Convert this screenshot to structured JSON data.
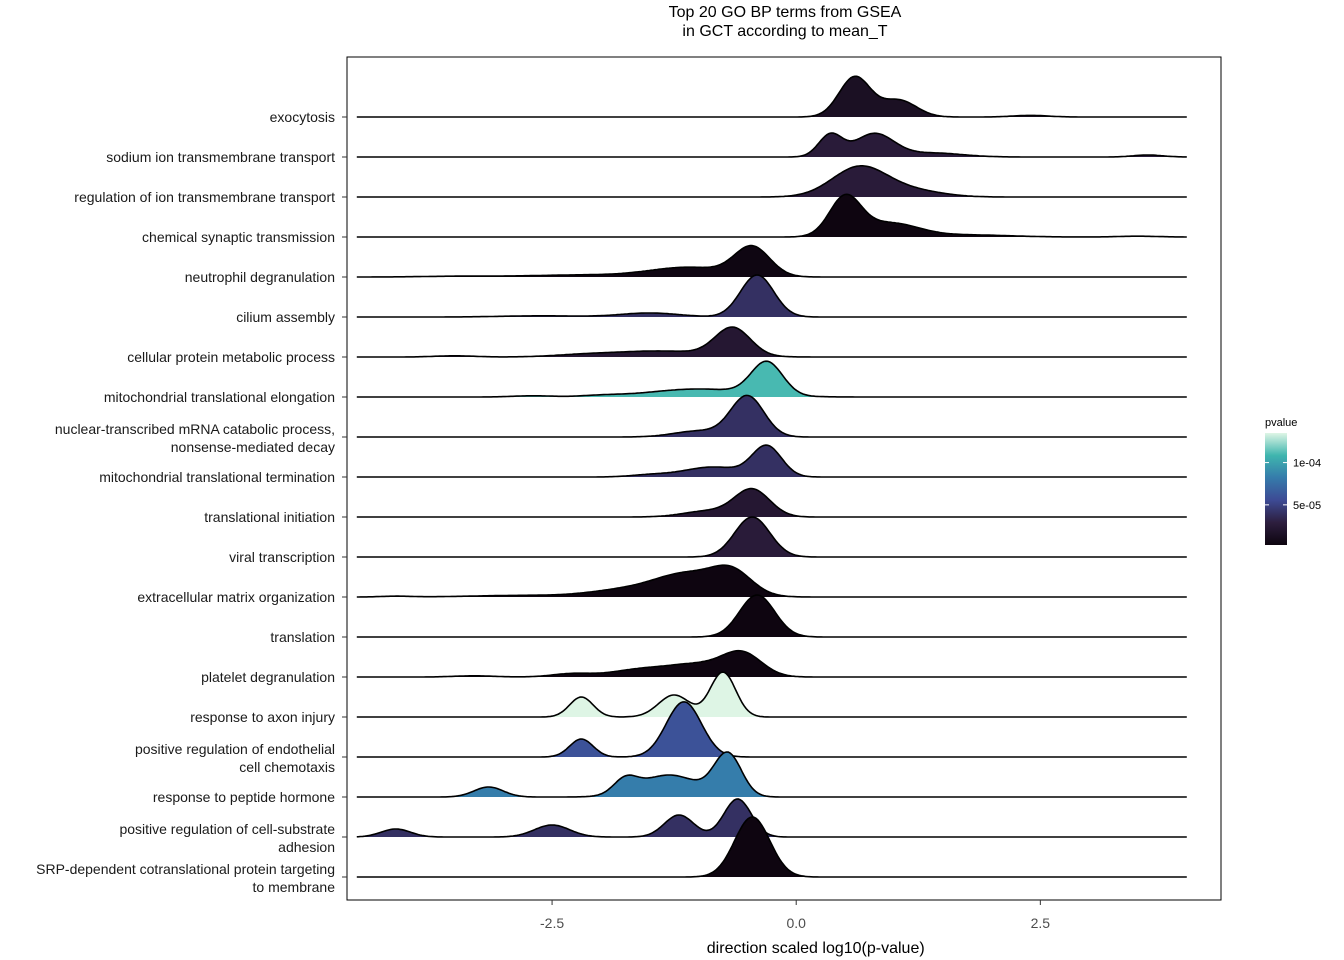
{
  "chart_data": {
    "type": "ridgeline",
    "title": [
      "Top 20 GO BP terms from GSEA",
      "in GCT according to mean_T"
    ],
    "xlabel": "direction scaled log10(p-value)",
    "x_ticks": [
      -2.5,
      0.0,
      2.5
    ],
    "x_tick_labels": [
      "-2.5",
      "0.0",
      "2.5"
    ],
    "xlim": [
      -4.6,
      4.35
    ],
    "x_range": [
      -4.5,
      4.0
    ],
    "grid": false,
    "legend": {
      "title": "pvalue",
      "ticks": [
        "1e-04",
        "5e-05"
      ],
      "tick_values": [
        0.0001,
        5e-05
      ],
      "range": [
        2.5e-06,
        0.000135
      ],
      "placement": "right",
      "colors": [
        "#0d050f",
        "#2d1e3e",
        "#3d4a94",
        "#357bab",
        "#3fb5ae",
        "#def5e5"
      ]
    },
    "series": [
      {
        "label": "exocytosis",
        "pvalue": 1.4e-05,
        "peaks": [
          [
            0.6,
            0.16,
            1.0
          ],
          [
            1.05,
            0.18,
            0.42
          ],
          [
            2.4,
            0.18,
            0.04
          ]
        ]
      },
      {
        "label": "sodium ion transmembrane transport",
        "pvalue": 2.6e-05,
        "peaks": [
          [
            0.35,
            0.12,
            0.55
          ],
          [
            0.8,
            0.2,
            0.58
          ],
          [
            1.4,
            0.3,
            0.1
          ],
          [
            3.6,
            0.15,
            0.05
          ]
        ]
      },
      {
        "label": "regulation of ion transmembrane transport",
        "pvalue": 2.6e-05,
        "peaks": [
          [
            0.65,
            0.28,
            0.75
          ],
          [
            1.2,
            0.3,
            0.15
          ]
        ]
      },
      {
        "label": "chemical synaptic transmission",
        "pvalue": 3e-06,
        "peaks": [
          [
            0.5,
            0.16,
            0.95
          ],
          [
            0.95,
            0.3,
            0.35
          ],
          [
            1.8,
            0.4,
            0.05
          ],
          [
            3.5,
            0.2,
            0.02
          ]
        ]
      },
      {
        "label": "neutrophil degranulation",
        "pvalue": 4e-06,
        "peaks": [
          [
            -0.45,
            0.18,
            0.72
          ],
          [
            -1.1,
            0.4,
            0.24
          ],
          [
            -2.2,
            0.5,
            0.05
          ],
          [
            -3.4,
            0.4,
            0.02
          ]
        ]
      },
      {
        "label": "cilium assembly",
        "pvalue": 4e-05,
        "peaks": [
          [
            -0.4,
            0.17,
            1.05
          ],
          [
            -1.5,
            0.3,
            0.1
          ],
          [
            -2.6,
            0.4,
            0.03
          ]
        ]
      },
      {
        "label": "cellular protein metabolic process",
        "pvalue": 2.2e-05,
        "peaks": [
          [
            -0.65,
            0.18,
            0.7
          ],
          [
            -1.4,
            0.5,
            0.15
          ],
          [
            -2.2,
            0.3,
            0.04
          ],
          [
            -3.5,
            0.2,
            0.03
          ]
        ]
      },
      {
        "label": "mitochondrial translational elongation",
        "pvalue": 0.00011,
        "peaks": [
          [
            -0.3,
            0.16,
            0.82
          ],
          [
            -1.0,
            0.5,
            0.2
          ],
          [
            -2.7,
            0.2,
            0.03
          ],
          [
            -2.0,
            0.2,
            0.03
          ]
        ]
      },
      {
        "label": "nuclear-transcribed mRNA catabolic process,\nnonsense-mediated decay",
        "pvalue": 4e-05,
        "peaks": [
          [
            -0.5,
            0.17,
            1.02
          ],
          [
            -1.0,
            0.25,
            0.15
          ]
        ]
      },
      {
        "label": "mitochondrial translational termination",
        "pvalue": 4e-05,
        "peaks": [
          [
            -0.3,
            0.15,
            0.75
          ],
          [
            -0.85,
            0.3,
            0.25
          ],
          [
            -1.5,
            0.2,
            0.05
          ]
        ]
      },
      {
        "label": "translational initiation",
        "pvalue": 2.2e-05,
        "peaks": [
          [
            -0.45,
            0.18,
            0.68
          ],
          [
            -0.9,
            0.25,
            0.15
          ]
        ]
      },
      {
        "label": "viral transcription",
        "pvalue": 2.6e-05,
        "peaks": [
          [
            -0.45,
            0.18,
            1.0
          ]
        ]
      },
      {
        "label": "extracellular matrix organization",
        "pvalue": 3e-06,
        "peaks": [
          [
            -0.65,
            0.2,
            0.5
          ],
          [
            -1.1,
            0.35,
            0.58
          ],
          [
            -1.8,
            0.35,
            0.15
          ],
          [
            -2.8,
            0.5,
            0.04
          ],
          [
            -4.1,
            0.15,
            0.02
          ]
        ]
      },
      {
        "label": "translation",
        "pvalue": 3e-06,
        "peaks": [
          [
            -0.4,
            0.18,
            1.05
          ]
        ]
      },
      {
        "label": "platelet degranulation",
        "pvalue": 3e-06,
        "peaks": [
          [
            -0.55,
            0.2,
            0.55
          ],
          [
            -1.0,
            0.3,
            0.3
          ],
          [
            -1.6,
            0.3,
            0.18
          ],
          [
            -2.3,
            0.2,
            0.08
          ],
          [
            -3.3,
            0.2,
            0.03
          ]
        ]
      },
      {
        "label": "response to axon injury",
        "pvalue": 0.000135,
        "peaks": [
          [
            -0.75,
            0.13,
            1.12
          ],
          [
            -1.25,
            0.16,
            0.55
          ],
          [
            -2.2,
            0.12,
            0.5
          ]
        ]
      },
      {
        "label": "positive regulation of endothelial\ncell chemotaxis",
        "pvalue": 6e-05,
        "peaks": [
          [
            -1.15,
            0.18,
            1.38
          ],
          [
            -2.2,
            0.12,
            0.45
          ]
        ]
      },
      {
        "label": "response to peptide hormone",
        "pvalue": 8.3e-05,
        "peaks": [
          [
            -0.7,
            0.14,
            1.05
          ],
          [
            -1.3,
            0.3,
            0.55
          ],
          [
            -1.75,
            0.12,
            0.35
          ],
          [
            -3.15,
            0.15,
            0.25
          ]
        ]
      },
      {
        "label": "positive regulation of cell-substrate\nadhesion",
        "pvalue": 4e-05,
        "peaks": [
          [
            -0.6,
            0.14,
            0.95
          ],
          [
            -1.2,
            0.15,
            0.55
          ],
          [
            -2.5,
            0.18,
            0.3
          ],
          [
            -4.1,
            0.15,
            0.2
          ]
        ]
      },
      {
        "label": "SRP-dependent cotranslational protein targeting\nto membrane",
        "pvalue": 3e-06,
        "peaks": [
          [
            -0.45,
            0.18,
            1.5
          ]
        ]
      }
    ]
  }
}
